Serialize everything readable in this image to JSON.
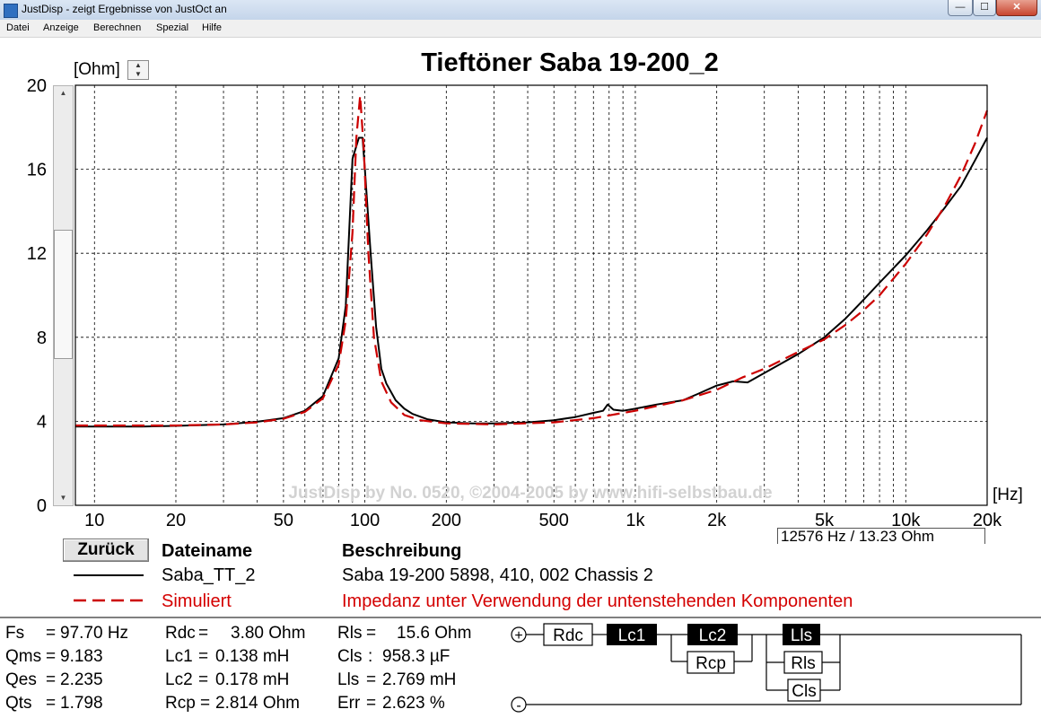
{
  "window": {
    "title": "JustDisp - zeigt Ergebnisse von JustOct an",
    "controls": {
      "minimize": "—",
      "maximize": "☐",
      "close": "✕"
    }
  },
  "menu": [
    {
      "label": "Datei"
    },
    {
      "label": "Anzeige"
    },
    {
      "label": "Berechnen"
    },
    {
      "label": "Spezial"
    },
    {
      "label": "Hilfe"
    }
  ],
  "chart": {
    "title": "Tieftöner Saba 19-200_2",
    "y_unit": "[Ohm]",
    "x_unit": "[Hz]",
    "watermark": "JustDisp by No. 0520, ©2004-2005 by www.hifi-selbstbau.de",
    "readout": "12576 Hz / 13.23 Ohm"
  },
  "chart_data": {
    "type": "line",
    "title": "Tieftöner Saba 19-200_2",
    "xlabel": "[Hz]",
    "ylabel": "[Ohm]",
    "x_scale": "log",
    "xlim": [
      8.5,
      20000
    ],
    "ylim": [
      0,
      20
    ],
    "x_ticks": [
      10,
      20,
      50,
      100,
      200,
      500,
      1000,
      2000,
      5000,
      10000,
      20000
    ],
    "x_tick_labels": [
      "10",
      "20",
      "50",
      "100",
      "200",
      "500",
      "1k",
      "2k",
      "5k",
      "10k",
      "20k"
    ],
    "y_ticks": [
      0,
      4,
      8,
      12,
      16,
      20
    ],
    "y_tick_labels": [
      "0",
      "4",
      "8",
      "12",
      "16",
      "20"
    ],
    "grid": true,
    "series": [
      {
        "name": "Saba_TT_2",
        "color": "#000000",
        "dash": "solid",
        "points": [
          [
            8.5,
            3.75
          ],
          [
            10,
            3.75
          ],
          [
            15,
            3.75
          ],
          [
            20,
            3.78
          ],
          [
            30,
            3.85
          ],
          [
            40,
            3.98
          ],
          [
            50,
            4.15
          ],
          [
            60,
            4.5
          ],
          [
            70,
            5.2
          ],
          [
            80,
            7.0
          ],
          [
            85,
            9.5
          ],
          [
            90,
            16.5
          ],
          [
            95,
            17.5
          ],
          [
            98,
            17.5
          ],
          [
            100,
            16.0
          ],
          [
            105,
            12.0
          ],
          [
            110,
            8.5
          ],
          [
            115,
            6.5
          ],
          [
            120,
            5.8
          ],
          [
            130,
            5.0
          ],
          [
            140,
            4.6
          ],
          [
            150,
            4.35
          ],
          [
            170,
            4.1
          ],
          [
            200,
            3.95
          ],
          [
            250,
            3.9
          ],
          [
            300,
            3.9
          ],
          [
            400,
            3.95
          ],
          [
            500,
            4.05
          ],
          [
            600,
            4.2
          ],
          [
            700,
            4.4
          ],
          [
            760,
            4.5
          ],
          [
            790,
            4.8
          ],
          [
            830,
            4.55
          ],
          [
            900,
            4.5
          ],
          [
            1000,
            4.6
          ],
          [
            1200,
            4.8
          ],
          [
            1500,
            5.0
          ],
          [
            1700,
            5.3
          ],
          [
            2000,
            5.7
          ],
          [
            2300,
            5.9
          ],
          [
            2600,
            5.85
          ],
          [
            3000,
            6.3
          ],
          [
            4000,
            7.2
          ],
          [
            5000,
            8.0
          ],
          [
            6000,
            8.9
          ],
          [
            7000,
            9.8
          ],
          [
            8000,
            10.6
          ],
          [
            10000,
            11.9
          ],
          [
            12000,
            13.1
          ],
          [
            14000,
            14.2
          ],
          [
            16000,
            15.2
          ],
          [
            18000,
            16.4
          ],
          [
            20000,
            17.5
          ]
        ]
      },
      {
        "name": "Simuliert",
        "color": "#cc0000",
        "dash": "dashed",
        "points": [
          [
            8.5,
            3.8
          ],
          [
            10,
            3.8
          ],
          [
            15,
            3.8
          ],
          [
            20,
            3.8
          ],
          [
            30,
            3.85
          ],
          [
            40,
            3.95
          ],
          [
            50,
            4.12
          ],
          [
            60,
            4.45
          ],
          [
            70,
            5.1
          ],
          [
            80,
            6.7
          ],
          [
            85,
            8.8
          ],
          [
            90,
            13.0
          ],
          [
            93,
            17.5
          ],
          [
            96,
            19.5
          ],
          [
            99,
            17.0
          ],
          [
            103,
            12.0
          ],
          [
            108,
            8.0
          ],
          [
            115,
            5.9
          ],
          [
            125,
            4.9
          ],
          [
            140,
            4.3
          ],
          [
            160,
            4.05
          ],
          [
            200,
            3.9
          ],
          [
            300,
            3.85
          ],
          [
            500,
            3.95
          ],
          [
            700,
            4.15
          ],
          [
            1000,
            4.5
          ],
          [
            1500,
            5.0
          ],
          [
            2000,
            5.5
          ],
          [
            2500,
            6.1
          ],
          [
            3000,
            6.5
          ],
          [
            4000,
            7.3
          ],
          [
            5000,
            7.9
          ],
          [
            6000,
            8.6
          ],
          [
            7000,
            9.3
          ],
          [
            8000,
            10.0
          ],
          [
            10000,
            11.5
          ],
          [
            12000,
            12.9
          ],
          [
            14000,
            14.3
          ],
          [
            16000,
            15.7
          ],
          [
            18000,
            17.2
          ],
          [
            20000,
            18.8
          ]
        ]
      }
    ]
  },
  "back_label": "Zurück",
  "legend": {
    "header_file": "Dateiname",
    "header_desc": "Beschreibung",
    "rows": [
      {
        "file": "Saba_TT_2",
        "desc": "Saba 19-200 5898, 410, 002 Chassis 2"
      },
      {
        "file": "Simuliert",
        "desc": "Impedanz unter Verwendung der untenstehenden Komponenten"
      }
    ]
  },
  "params": {
    "fs": {
      "name": "Fs",
      "sep": "=",
      "value": "97.70 Hz"
    },
    "qms": {
      "name": "Qms",
      "sep": "=",
      "value": "9.183"
    },
    "qes": {
      "name": "Qes",
      "sep": "=",
      "value": "2.235"
    },
    "qts": {
      "name": "Qts",
      "sep": "=",
      "value": "1.798"
    },
    "rdc": {
      "name": "Rdc",
      "sep": "=",
      "value": "3.80 Ohm"
    },
    "lc1": {
      "name": "Lc1",
      "sep": "=",
      "value": "0.138 mH"
    },
    "lc2": {
      "name": "Lc2",
      "sep": "=",
      "value": "0.178 mH"
    },
    "rcp": {
      "name": "Rcp",
      "sep": "=",
      "value": "2.814 Ohm"
    },
    "rls": {
      "name": "Rls",
      "sep": "=",
      "value": "15.6 Ohm"
    },
    "cls": {
      "name": "Cls",
      "sep": ":",
      "value": "958.3 µF"
    },
    "lls": {
      "name": "Lls",
      "sep": "=",
      "value": "2.769 mH"
    },
    "err": {
      "name": "Err",
      "sep": "=",
      "value": "2.623 %"
    }
  },
  "circuit": {
    "plus": "+",
    "minus": "-",
    "rdc": "Rdc",
    "lc1": "Lc1",
    "lc2": "Lc2",
    "rcp": "Rcp",
    "lls": "Lls",
    "rls": "Rls",
    "cls": "Cls"
  }
}
